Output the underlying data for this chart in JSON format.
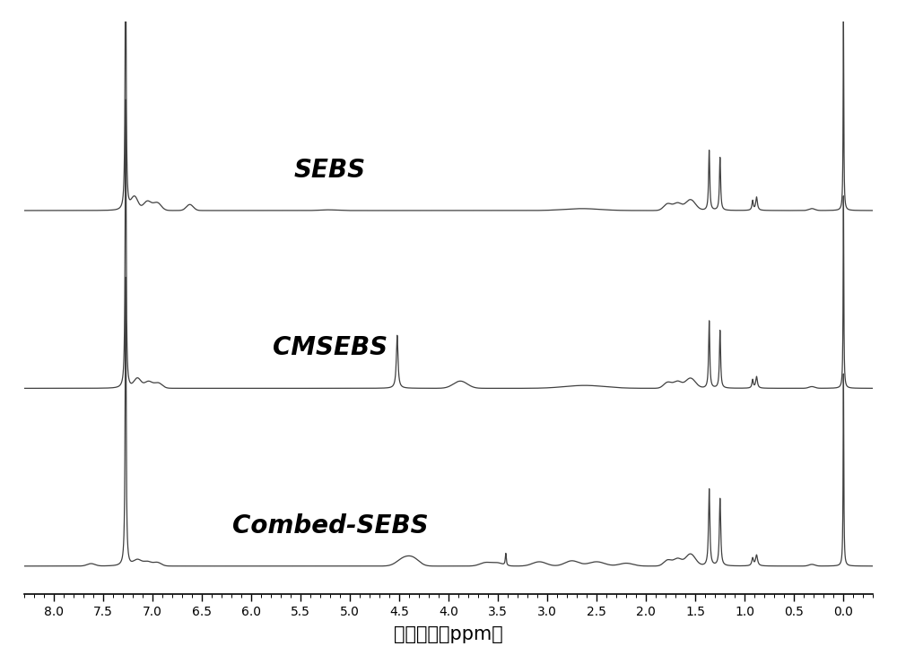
{
  "xlabel": "化学位移（ppm）",
  "xlim": [
    8.3,
    -0.3
  ],
  "xticks": [
    8.0,
    7.5,
    7.0,
    6.5,
    6.0,
    5.5,
    5.0,
    4.5,
    4.0,
    3.5,
    3.0,
    2.5,
    2.0,
    1.5,
    1.0,
    0.5,
    0.0
  ],
  "background_color": "#ffffff",
  "line_color": "#404040",
  "labels": [
    "SEBS",
    "CMSEBS",
    "Combed-SEBS"
  ],
  "label_fontsize": 20,
  "label_fontweight": "bold",
  "baseline_offsets": [
    0.68,
    0.36,
    0.04
  ],
  "xlabel_fontsize": 15,
  "tick_fontsize": 13,
  "figwidth": 10.0,
  "figheight": 7.5,
  "dpi": 100
}
